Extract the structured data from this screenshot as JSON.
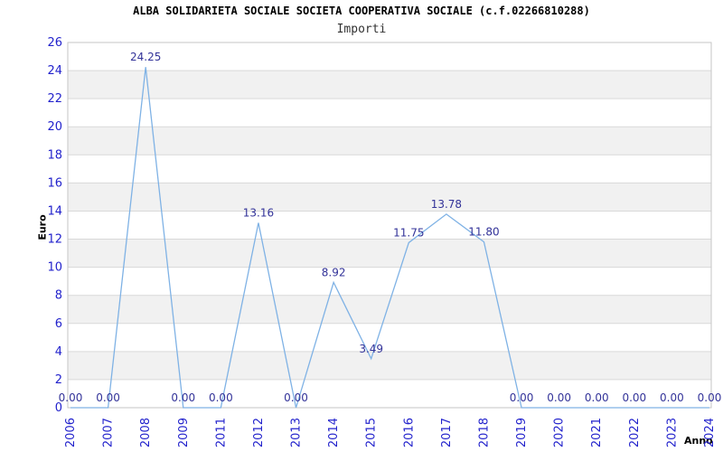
{
  "header": {
    "title": "ALBA SOLIDARIETA SOCIALE SOCIETA COOPERATIVA SOCIALE (c.f.02266810288)",
    "subtitle": "Importi"
  },
  "chart_data": {
    "type": "line",
    "title": "Importi",
    "xlabel": "Anno",
    "ylabel": "Euro",
    "ylim": [
      0,
      26
    ],
    "ytick_step": 2,
    "grid": true,
    "legend": null,
    "categories": [
      "2006",
      "2007",
      "2008",
      "2009",
      "2011",
      "2012",
      "2013",
      "2014",
      "2015",
      "2016",
      "2017",
      "2018",
      "2019",
      "2020",
      "2021",
      "2022",
      "2023",
      "2024"
    ],
    "values": [
      0,
      0,
      24.25,
      0,
      0,
      13.16,
      0,
      8.92,
      3.49,
      11.75,
      13.78,
      11.8,
      0,
      0,
      0,
      0,
      0,
      0
    ],
    "value_labels": [
      "0.00",
      "0.00",
      "24.25",
      "0.00",
      "0.00",
      "13.16",
      "0.00",
      "8.92",
      "3.49",
      "11.75",
      "13.78",
      "11.80",
      "0.00",
      "0.00",
      "0.00",
      "0.00",
      "0.00",
      "0.00"
    ],
    "colors": {
      "line": "#7fb2e5",
      "tick_label": "#2222cc",
      "value_label": "#333399",
      "band": "#f1f1f1",
      "grid": "#d9d9d9",
      "border": "#c6c6c6",
      "title": "#000000",
      "subtitle": "#333333"
    }
  }
}
